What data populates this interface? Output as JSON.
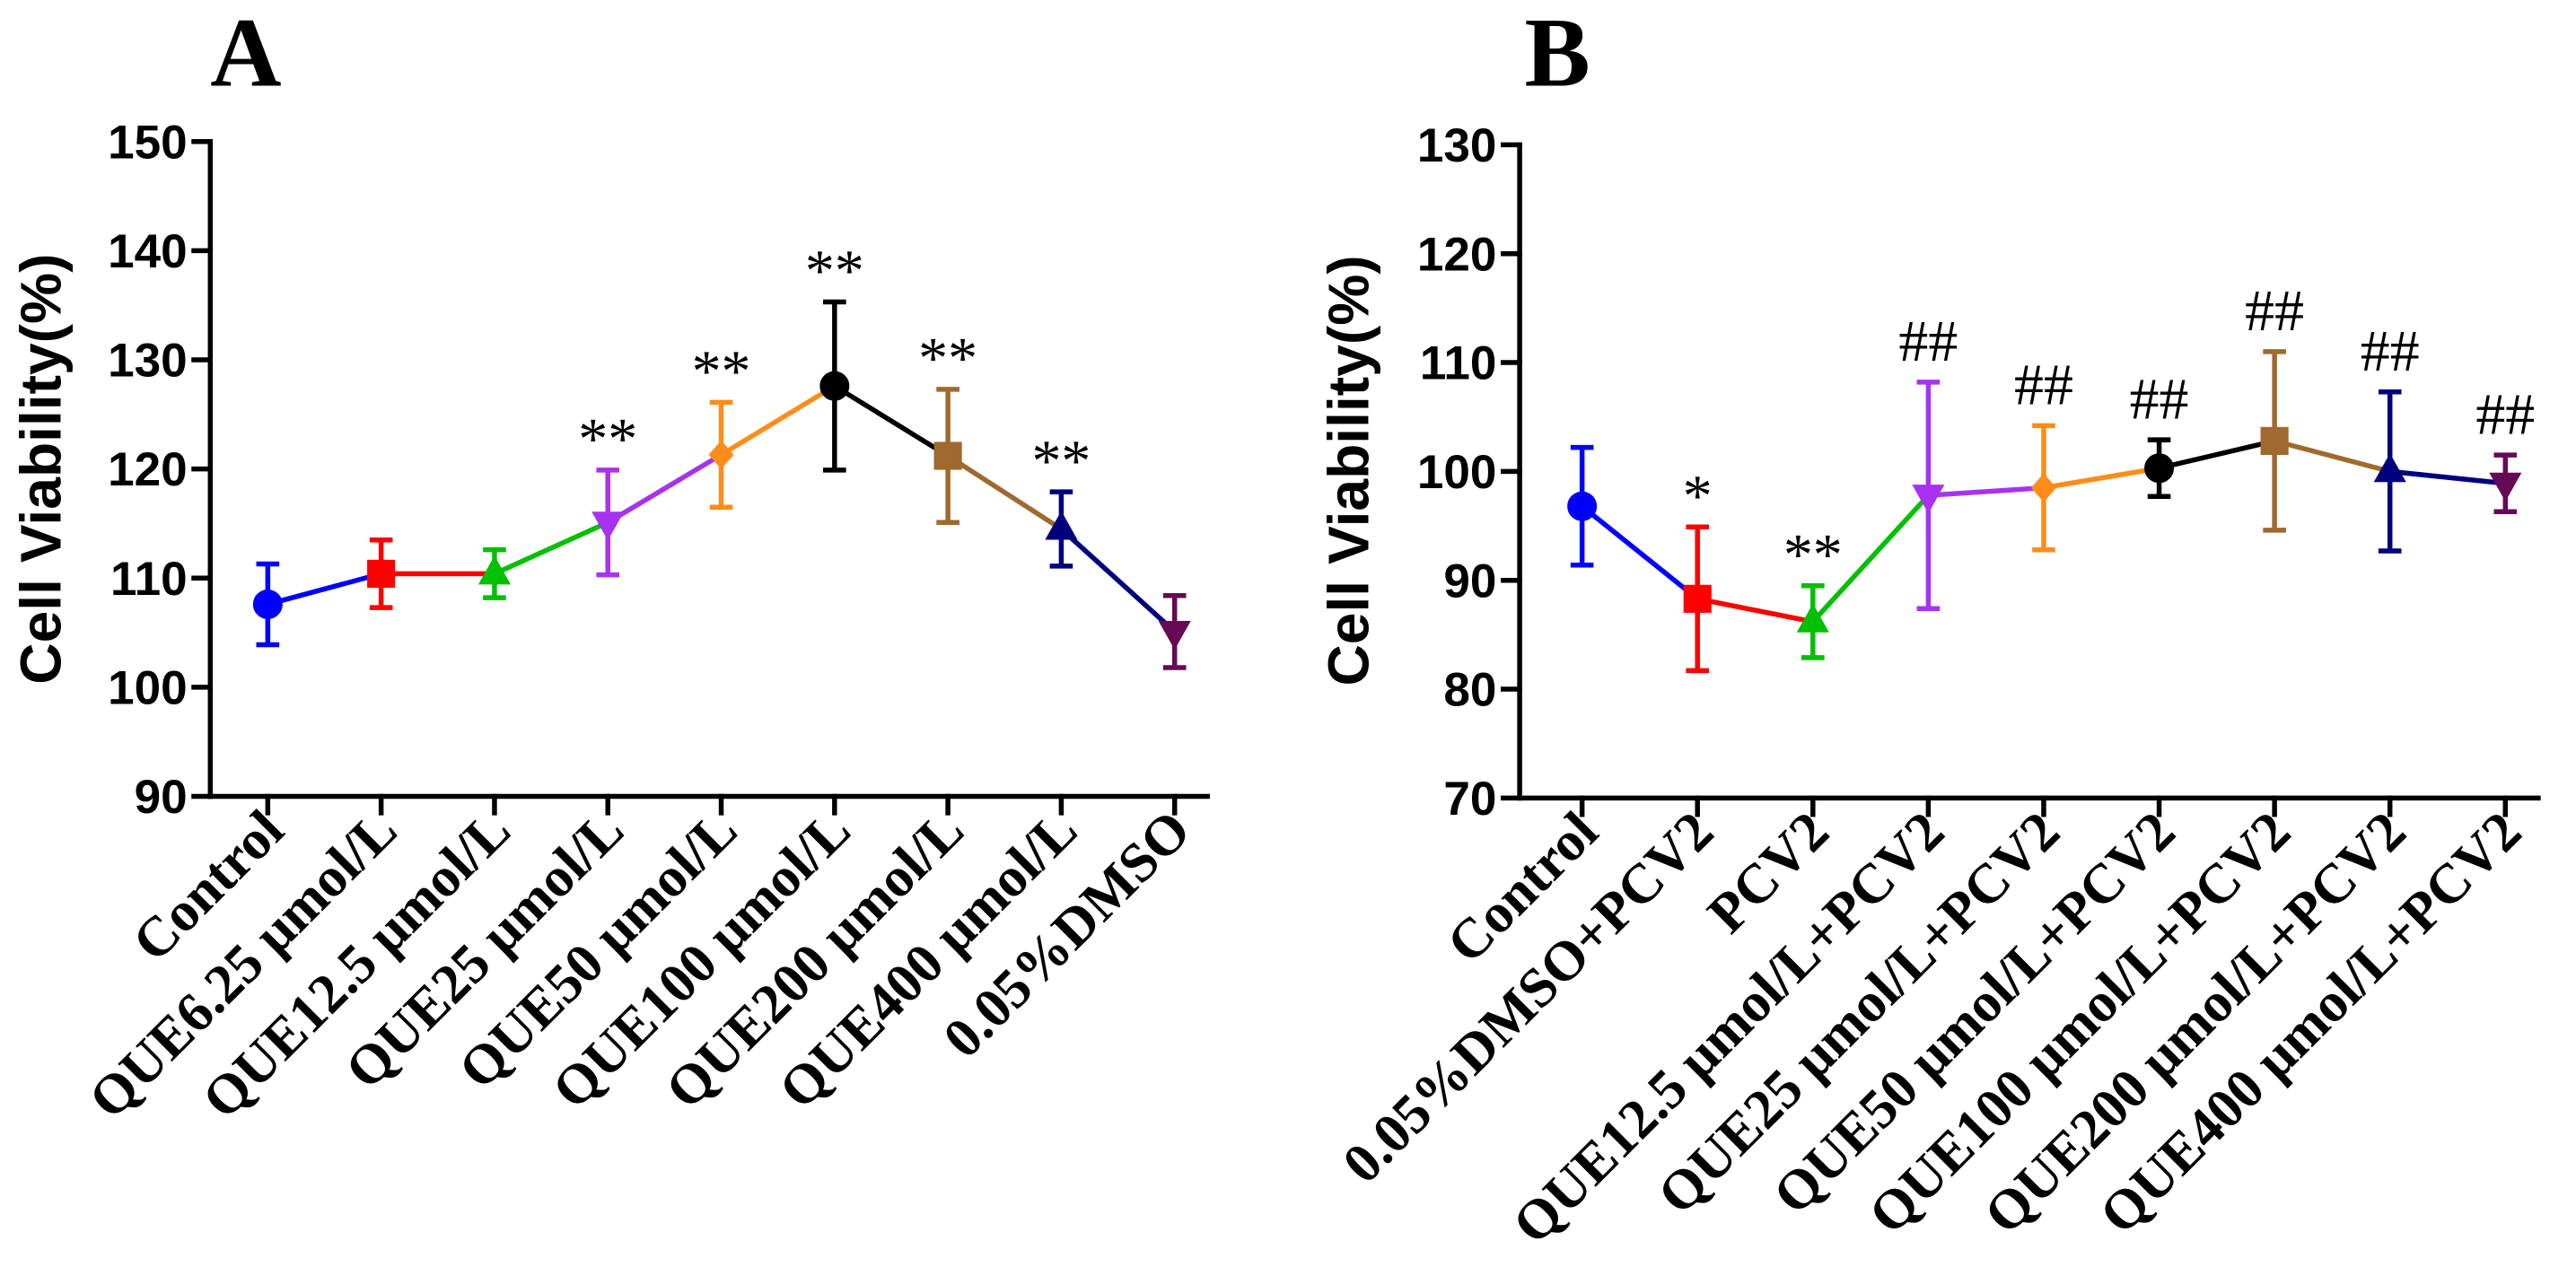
{
  "chart_data": [
    {
      "panel_label": "A",
      "type": "line",
      "title": "",
      "xlabel": "",
      "ylabel": "Cell Viability(%)",
      "ylim": [
        90,
        150
      ],
      "yticks": [
        90,
        100,
        110,
        120,
        130,
        140,
        150
      ],
      "grid": false,
      "categories": [
        "Control",
        "QUE6.25 μmol/L",
        "QUE12.5 μmol/L",
        "QUE25 μmol/L",
        "QUE50 μmol/L",
        "QUE100 μmol/L",
        "QUE200 μmol/L",
        "QUE400 μmol/L",
        "0.05%DMSO"
      ],
      "values": [
        107.6,
        110.4,
        110.4,
        115.1,
        121.3,
        127.6,
        121.2,
        114.5,
        105.1
      ],
      "error": [
        3.7,
        3.1,
        2.2,
        4.8,
        4.8,
        7.7,
        6.1,
        3.4,
        3.3
      ],
      "colors": [
        "#0000FF",
        "#FF0000",
        "#00C000",
        "#A832F0",
        "#FF8C1A",
        "#000000",
        "#A0692D",
        "#00007F",
        "#660A55"
      ],
      "markers": [
        "circle",
        "square",
        "triangle-up",
        "triangle-down",
        "diamond",
        "circle",
        "square",
        "triangle-up",
        "triangle-down"
      ],
      "annotations": [
        {
          "index": 3,
          "text": "**"
        },
        {
          "index": 4,
          "text": "**"
        },
        {
          "index": 5,
          "text": "**"
        },
        {
          "index": 6,
          "text": "**"
        },
        {
          "index": 7,
          "text": "**"
        }
      ]
    },
    {
      "panel_label": "B",
      "type": "line",
      "title": "",
      "xlabel": "",
      "ylabel": "Cell Viability(%)",
      "ylim": [
        70,
        130
      ],
      "yticks": [
        70,
        80,
        90,
        100,
        110,
        120,
        130
      ],
      "grid": false,
      "categories": [
        "Control",
        "0.05%DMSO+PCV2",
        "PCV2",
        "QUE12.5 μmol/L+PCV2",
        "QUE25 μmol/L+PCV2",
        "QUE50 μmol/L+PCV2",
        "QUE100 μmol/L+PCV2",
        "QUE200 μmol/L+PCV2",
        "QUE400 μmol/L+PCV2"
      ],
      "values": [
        96.8,
        88.3,
        86.2,
        97.8,
        98.5,
        100.3,
        102.8,
        100.0,
        98.9
      ],
      "error": [
        5.4,
        6.6,
        3.3,
        10.4,
        5.7,
        2.6,
        8.2,
        7.3,
        2.6
      ],
      "colors": [
        "#0000FF",
        "#FF0000",
        "#00C000",
        "#A832F0",
        "#FF8C1A",
        "#000000",
        "#A0692D",
        "#00007F",
        "#660A55"
      ],
      "markers": [
        "circle",
        "square",
        "triangle-up",
        "triangle-down",
        "diamond",
        "circle",
        "square",
        "triangle-up",
        "triangle-down"
      ],
      "annotations": [
        {
          "index": 1,
          "text": "*"
        },
        {
          "index": 2,
          "text": "**"
        },
        {
          "index": 3,
          "text": "##"
        },
        {
          "index": 4,
          "text": "##"
        },
        {
          "index": 5,
          "text": "##"
        },
        {
          "index": 6,
          "text": "##"
        },
        {
          "index": 7,
          "text": "##"
        },
        {
          "index": 8,
          "text": "##"
        }
      ]
    }
  ]
}
